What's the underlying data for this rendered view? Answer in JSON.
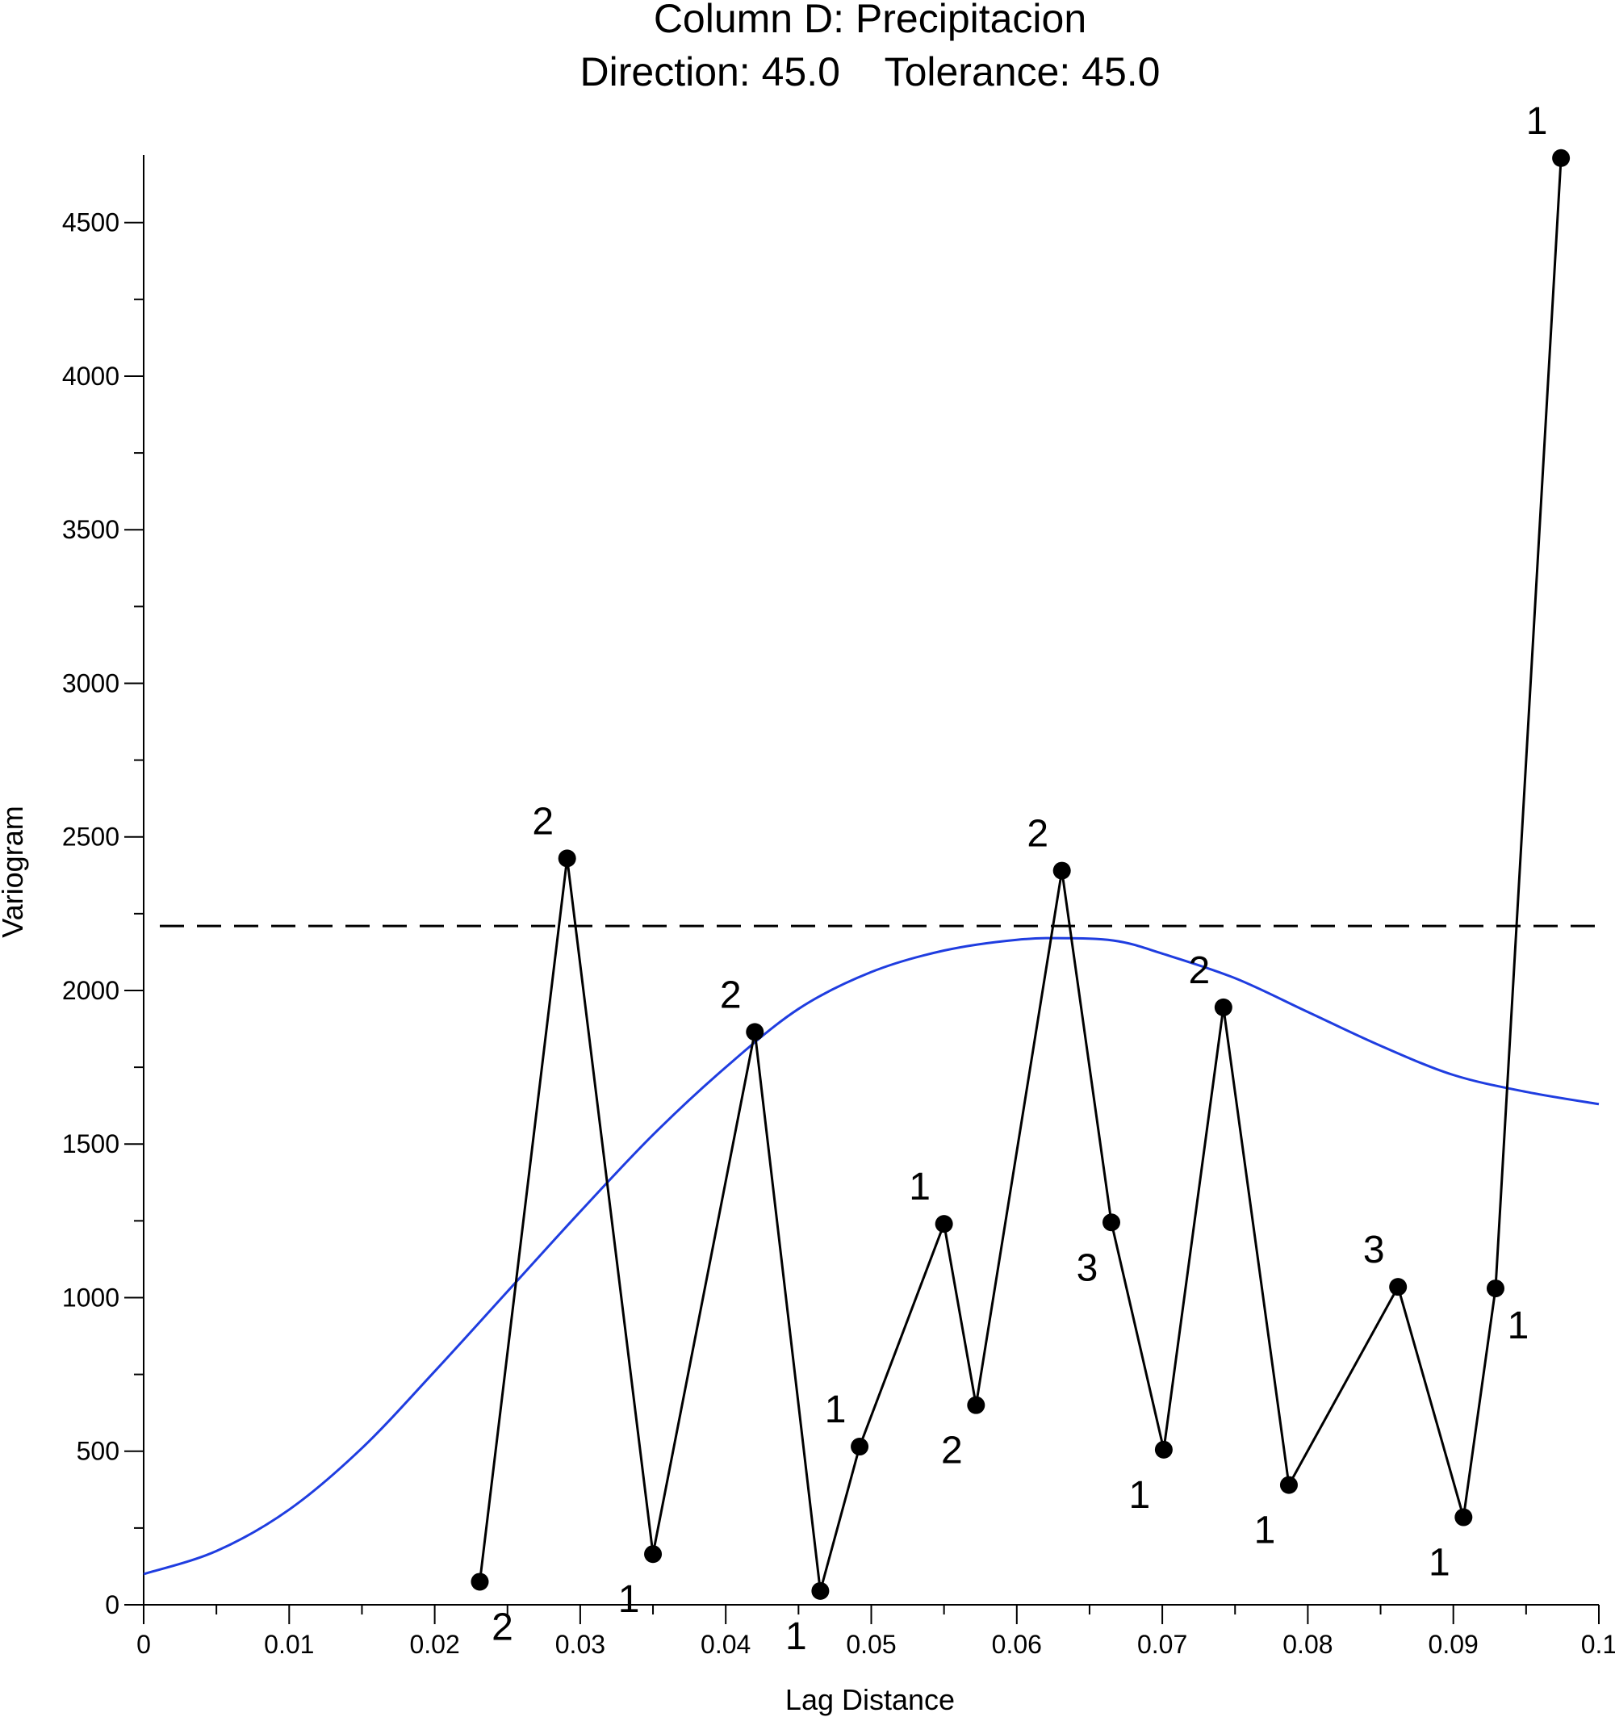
{
  "chart_data": {
    "type": "line",
    "title": "Column D:  Precipitacion",
    "subtitle": "Direction: 45.0    Tolerance: 45.0",
    "xlabel": "Lag Distance",
    "ylabel": "Variogram",
    "xlim": [
      0,
      0.1
    ],
    "ylim": [
      0,
      4720
    ],
    "x_ticks": [
      0,
      0.01,
      0.02,
      0.03,
      0.04,
      0.05,
      0.06,
      0.07,
      0.08,
      0.09,
      0.1
    ],
    "x_tick_labels": [
      "0",
      "0.01",
      "0.02",
      "0.03",
      "0.04",
      "0.05",
      "0.06",
      "0.07",
      "0.08",
      "0.09",
      "0.1"
    ],
    "y_ticks": [
      0,
      500,
      1000,
      1500,
      2000,
      2500,
      3000,
      3500,
      4000,
      4500
    ],
    "y_tick_labels": [
      "0",
      "500",
      "1000",
      "1500",
      "2000",
      "2500",
      "3000",
      "3500",
      "4000",
      "4500"
    ],
    "sill": 2210,
    "grid": false,
    "colors": {
      "experimental": "#000000",
      "model": "#1f3de0",
      "sill": "#000000"
    },
    "experimental": {
      "x": [
        0.0231,
        0.0291,
        0.035,
        0.042,
        0.0465,
        0.0492,
        0.055,
        0.0572,
        0.0631,
        0.0665,
        0.0701,
        0.0742,
        0.0787,
        0.0862,
        0.0907,
        0.0929,
        0.0974
      ],
      "y": [
        75,
        2430,
        165,
        1865,
        45,
        515,
        1240,
        650,
        2390,
        1245,
        505,
        1945,
        390,
        1035,
        285,
        1030,
        4710
      ],
      "pairs": [
        "2",
        "2",
        "1",
        "2",
        "1",
        "1",
        "1",
        "2",
        "2",
        "3",
        "1",
        "2",
        "1",
        "3",
        "1",
        "1",
        "1"
      ],
      "label_pos": [
        "below",
        "above",
        "below-left",
        "above",
        "below-left",
        "above-left",
        "above-left",
        "below-left",
        "above-left",
        "below-left",
        "below-left",
        "above-left",
        "below-left",
        "above-left",
        "below-left",
        "below-right",
        "above-left"
      ]
    },
    "model_curve": {
      "x": [
        0,
        0.005,
        0.01,
        0.015,
        0.02,
        0.025,
        0.03,
        0.035,
        0.04,
        0.045,
        0.05,
        0.055,
        0.06,
        0.0638,
        0.067,
        0.07,
        0.075,
        0.08,
        0.085,
        0.09,
        0.095,
        0.1
      ],
      "y": [
        100,
        175,
        310,
        510,
        760,
        1020,
        1280,
        1530,
        1750,
        1940,
        2060,
        2130,
        2165,
        2170,
        2160,
        2120,
        2040,
        1930,
        1820,
        1725,
        1670,
        1630
      ]
    }
  }
}
